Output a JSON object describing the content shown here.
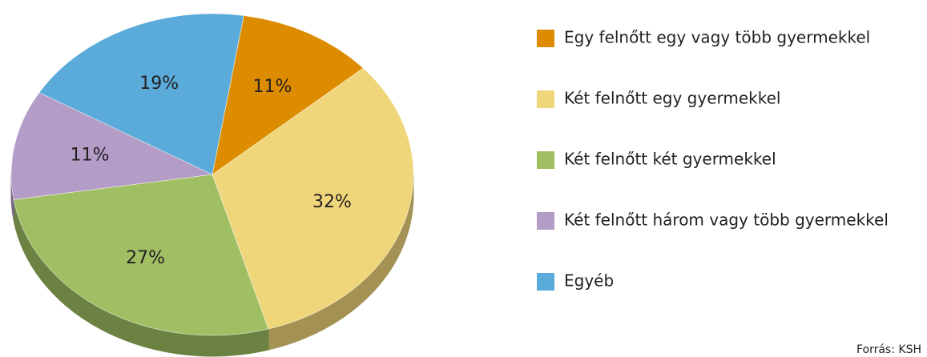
{
  "chart_data": {
    "type": "pie",
    "categories": [
      "Egy felnőtt egy vagy több gyermekkel",
      "Két felnőtt egy gyermekkel",
      "Két felnőtt két gyermekkel",
      "Két felnőtt három vagy több gyermekkel",
      "Egyéb"
    ],
    "values": [
      11,
      32,
      27,
      11,
      19
    ],
    "value_labels": [
      "11%",
      "32%",
      "27%",
      "11%",
      "19%"
    ],
    "colors": [
      "#dd8c00",
      "#f0d67a",
      "#9fbf62",
      "#b39cc6",
      "#5aabd9"
    ],
    "legend": "right",
    "source": "Forrás: KSH"
  }
}
